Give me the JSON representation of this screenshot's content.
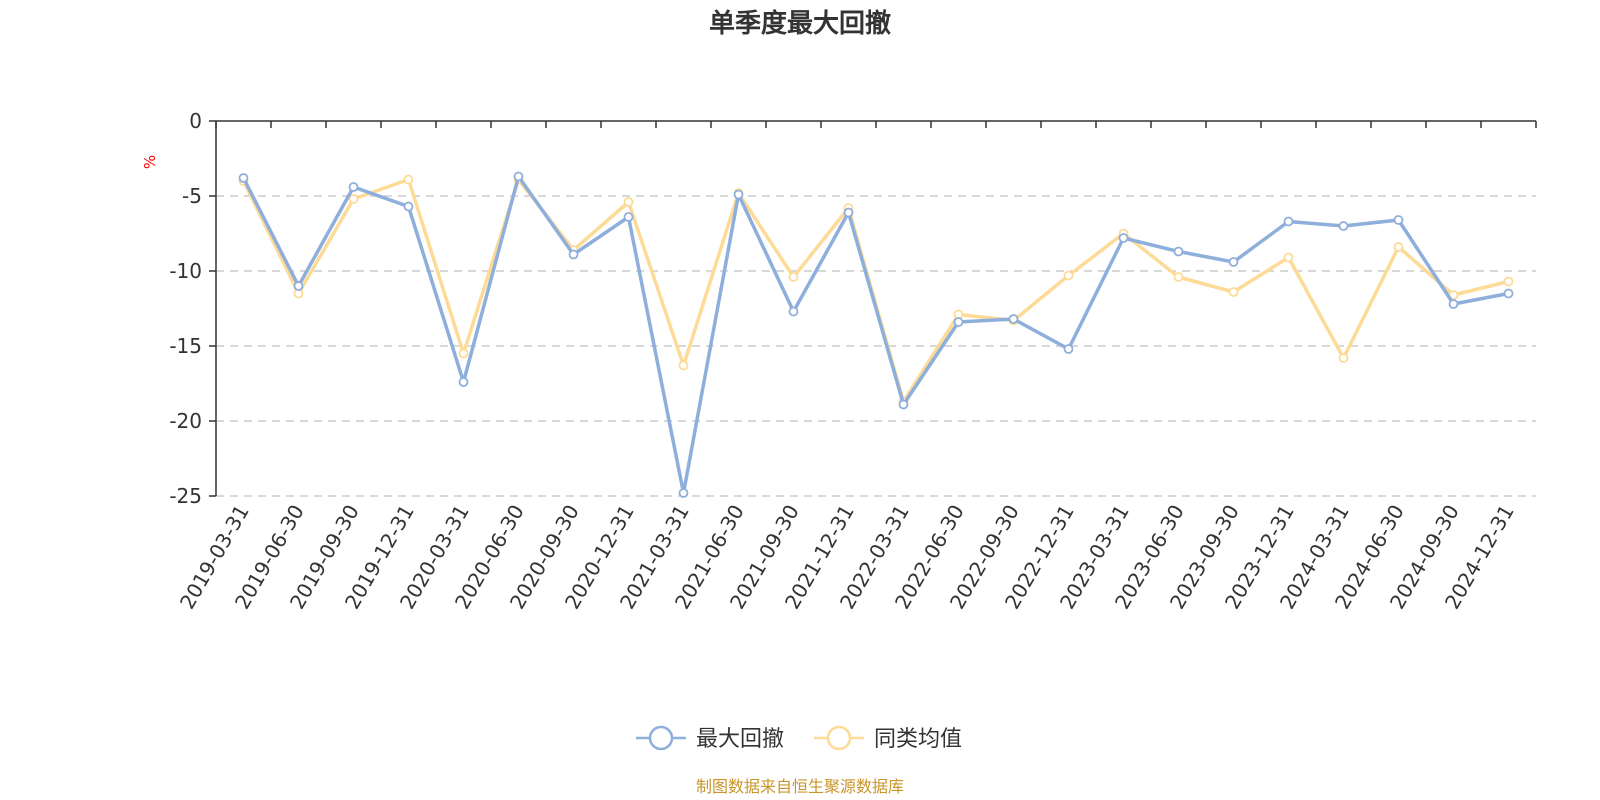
{
  "chart_data": {
    "type": "line",
    "title": "单季度最大回撤",
    "ylabel": "%",
    "ylim": [
      -25,
      0
    ],
    "yticks": [
      0,
      -5,
      -10,
      -15,
      -20,
      -25
    ],
    "grid": true,
    "legend_position": "bottom",
    "x": [
      "2019-03-31",
      "2019-06-30",
      "2019-09-30",
      "2019-12-31",
      "2020-03-31",
      "2020-06-30",
      "2020-09-30",
      "2020-12-31",
      "2021-03-31",
      "2021-06-30",
      "2021-09-30",
      "2021-12-31",
      "2022-03-31",
      "2022-06-30",
      "2022-09-30",
      "2022-12-31",
      "2023-03-31",
      "2023-06-30",
      "2023-09-30",
      "2023-12-31",
      "2024-03-31",
      "2024-06-30",
      "2024-09-30",
      "2024-12-31"
    ],
    "series": [
      {
        "name": "最大回撤",
        "color": "#8eaedc",
        "values": [
          -3.8,
          -11.0,
          -4.4,
          -5.7,
          -17.4,
          -3.7,
          -8.9,
          -6.4,
          -24.8,
          -4.9,
          -12.7,
          -6.1,
          -18.9,
          -13.4,
          -13.2,
          -15.2,
          -7.8,
          -8.7,
          -9.4,
          -6.7,
          -7.0,
          -6.6,
          -12.2,
          -11.5
        ]
      },
      {
        "name": "同类均值",
        "color": "#fddb97",
        "values": [
          -4.0,
          -11.5,
          -5.2,
          -3.9,
          -15.5,
          -3.9,
          -8.6,
          -5.4,
          -16.3,
          -4.8,
          -10.4,
          -5.8,
          -18.7,
          -12.9,
          -13.3,
          -10.3,
          -7.5,
          -10.4,
          -11.4,
          -9.1,
          -15.8,
          -8.4,
          -11.6,
          -10.7
        ]
      }
    ]
  },
  "footer": {
    "source": "制图数据来自恒生聚源数据库"
  }
}
